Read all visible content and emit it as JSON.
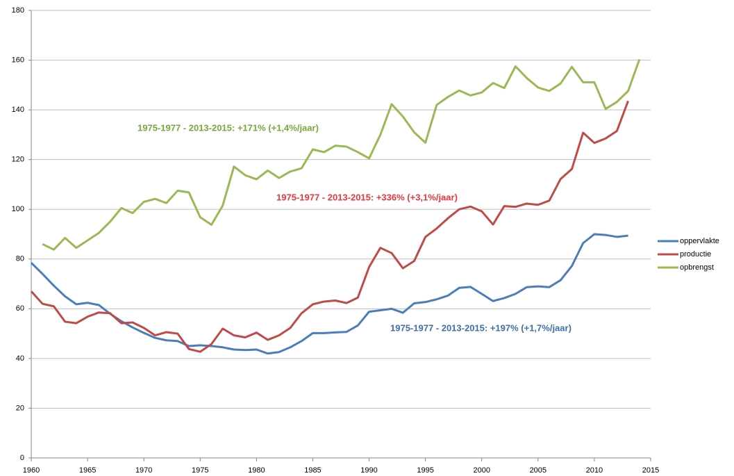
{
  "chart_data": {
    "type": "line",
    "x": [
      1960,
      1961,
      1962,
      1963,
      1964,
      1965,
      1966,
      1967,
      1968,
      1969,
      1970,
      1971,
      1972,
      1973,
      1974,
      1975,
      1976,
      1977,
      1978,
      1979,
      1980,
      1981,
      1982,
      1983,
      1984,
      1985,
      1986,
      1987,
      1988,
      1989,
      1990,
      1991,
      1992,
      1993,
      1994,
      1995,
      1996,
      1997,
      1998,
      1999,
      2000,
      2001,
      2002,
      2003,
      2004,
      2005,
      2006,
      2007,
      2008,
      2009,
      2010,
      2011,
      2012,
      2013,
      2014
    ],
    "series": [
      {
        "name": "oppervlakte",
        "color": "#4a7ebb",
        "values": [
          78.5,
          74,
          69.3,
          65,
          61.8,
          62.4,
          61.5,
          58,
          55,
          52.5,
          50.3,
          48.3,
          47.3,
          47,
          45,
          45.3,
          45,
          44.5,
          43.6,
          43.4,
          43.6,
          42,
          42.6,
          44.5,
          47,
          50.2,
          50.2,
          50.5,
          50.7,
          53.3,
          58.8,
          59.4,
          60,
          58.4,
          62.2,
          62.7,
          63.8,
          65.3,
          68.4,
          68.8,
          66,
          63.1,
          64.3,
          66,
          68.7,
          69,
          68.7,
          71.5,
          77.2,
          86.4,
          90,
          89.7,
          88.9,
          89.4,
          null
        ]
      },
      {
        "name": "productie",
        "color": "#be4b48",
        "values": [
          67,
          62,
          61,
          54.8,
          54.2,
          56.8,
          58.5,
          58.2,
          54.2,
          54.5,
          52.3,
          49.3,
          50.6,
          50,
          43.8,
          42.7,
          45.8,
          52,
          49.3,
          48.5,
          50.4,
          47.5,
          49.3,
          52.3,
          58.2,
          61.8,
          62.9,
          63.3,
          62.3,
          64.5,
          76.8,
          84.5,
          82.4,
          76.3,
          79.2,
          88.9,
          92.3,
          96.4,
          100,
          101.1,
          99.2,
          93.9,
          101.3,
          101,
          102.3,
          101.8,
          103.5,
          112.2,
          116.2,
          130.8,
          126.7,
          128.5,
          131.5,
          143.6,
          null
        ]
      },
      {
        "name": "opbrengst",
        "color": "#98b954",
        "values": [
          null,
          86,
          83.8,
          88.5,
          84.5,
          87.5,
          90.5,
          95,
          100.5,
          98.5,
          103,
          104.2,
          102.5,
          107.5,
          106.8,
          96.8,
          93.8,
          101.5,
          117.2,
          113.7,
          112.1,
          115.6,
          112.6,
          115.2,
          116.5,
          124.1,
          123,
          125.6,
          125.2,
          123,
          120.5,
          130,
          142.3,
          137.3,
          131,
          126.8,
          142,
          145.2,
          147.8,
          145.8,
          147,
          150.8,
          148.8,
          157.5,
          152.8,
          149,
          147.6,
          150.6,
          157.3,
          151.1,
          151.1,
          140.4,
          143.2,
          147.6,
          160.3
        ]
      }
    ],
    "annotations": [
      {
        "text": "1975-1977 - 2013-2015: +171% (+1,4%/jaar)",
        "color": "#77a83c"
      },
      {
        "text": "1975-1977 - 2013-2015: +336% (+3,1%/jaar)",
        "color": "#e8383d"
      },
      {
        "text": "1975-1977 - 2013-2015: +197% (+1,7%/jaar)",
        "color": "#3e6fa8"
      }
    ],
    "xlim": [
      1960,
      2015
    ],
    "xticks": [
      1960,
      1965,
      1970,
      1975,
      1980,
      1985,
      1990,
      1995,
      2000,
      2005,
      2010,
      2015
    ],
    "ylim": [
      0,
      180
    ],
    "yticks": [
      0,
      20,
      40,
      60,
      80,
      100,
      120,
      140,
      160,
      180
    ],
    "grid": true,
    "legend": "right"
  }
}
